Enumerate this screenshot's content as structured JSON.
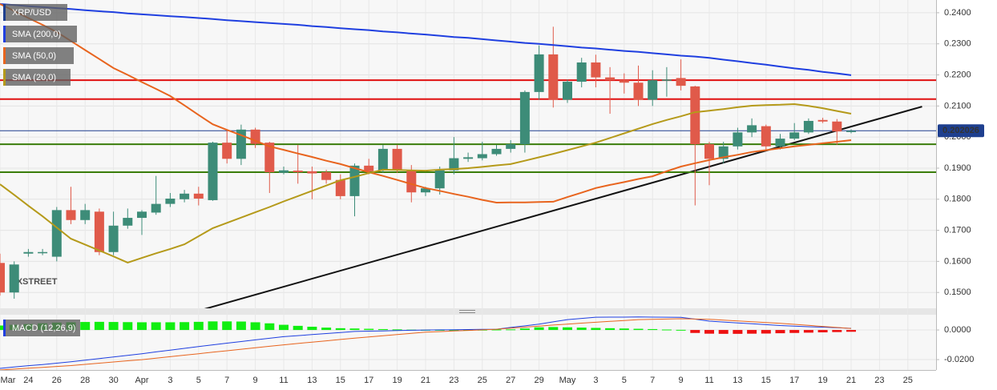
{
  "chart_data": [
    {
      "type": "candlestick",
      "title": "XRP/USD",
      "watermark": "FXSTREET",
      "categories": [
        "Mar",
        null,
        "24",
        null,
        "26",
        null,
        "28",
        null,
        "30",
        null,
        "Apr",
        null,
        "3",
        null,
        "5",
        null,
        "7",
        null,
        "9",
        null,
        "11",
        null,
        "13",
        null,
        "15",
        null,
        "17",
        null,
        "19",
        null,
        "21",
        null,
        "23",
        null,
        "25",
        null,
        "27",
        null,
        "29",
        null,
        "May",
        null,
        "3",
        null,
        "5",
        null,
        "7",
        null,
        "9",
        null,
        "11",
        null,
        "13",
        null,
        "15",
        null,
        "17",
        null,
        "19",
        null,
        "21",
        null,
        "23",
        null,
        "25",
        null
      ],
      "open": [
        0.1595,
        0.15,
        0.1625,
        0.163,
        0.1615,
        0.1765,
        0.1733,
        0.176,
        0.163,
        0.1715,
        0.174,
        0.1757,
        0.1785,
        0.18,
        0.1818,
        0.1797,
        0.1982,
        0.193,
        0.2024,
        0.1982,
        0.1885,
        0.1892,
        0.189,
        0.1887,
        0.1862,
        0.181,
        0.1908,
        0.1893,
        0.1962,
        0.1893,
        0.1822,
        0.1835,
        0.1893,
        0.193,
        0.1932,
        0.1945,
        0.1962,
        0.1977,
        0.2145,
        0.2266,
        0.212,
        0.2178,
        0.224,
        0.2192,
        0.2183,
        0.2175,
        0.212,
        0.2183,
        0.219,
        0.2163,
        0.1977,
        0.193,
        0.197,
        0.2015,
        0.2035,
        0.197,
        0.1995,
        0.2015,
        0.2055,
        0.205,
        0.2018,
        null,
        null,
        null,
        null,
        null
      ],
      "high": [
        0.1625,
        0.16,
        0.164,
        0.164,
        0.1775,
        0.184,
        0.1785,
        0.177,
        0.176,
        0.177,
        0.1765,
        0.1875,
        0.182,
        0.183,
        0.184,
        0.1985,
        0.202,
        0.204,
        0.203,
        0.1985,
        0.1905,
        0.1975,
        0.1905,
        0.1895,
        0.188,
        0.1915,
        0.193,
        0.1975,
        0.1975,
        0.191,
        0.184,
        0.1905,
        0.2,
        0.195,
        0.1985,
        0.1975,
        0.199,
        0.215,
        0.2295,
        0.2355,
        0.2185,
        0.2255,
        0.2265,
        0.2225,
        0.2205,
        0.223,
        0.2215,
        0.2225,
        0.225,
        0.2165,
        0.1985,
        0.1985,
        0.203,
        0.206,
        0.204,
        0.201,
        0.2045,
        0.206,
        0.2062,
        0.2058,
        0.2025,
        null,
        null,
        null,
        null,
        null
      ],
      "low": [
        0.149,
        0.148,
        0.1615,
        0.162,
        0.16,
        0.172,
        0.172,
        0.162,
        0.162,
        0.1705,
        0.1685,
        0.175,
        0.1775,
        0.179,
        0.178,
        0.1795,
        0.1915,
        0.191,
        0.1965,
        0.182,
        0.188,
        0.185,
        0.18,
        0.185,
        0.18,
        0.1745,
        0.188,
        0.1885,
        0.1885,
        0.179,
        0.181,
        0.1815,
        0.188,
        0.192,
        0.1925,
        0.194,
        0.195,
        0.195,
        0.212,
        0.2095,
        0.211,
        0.216,
        0.216,
        0.2075,
        0.214,
        0.21,
        0.21,
        0.213,
        0.215,
        0.178,
        0.1845,
        0.1915,
        0.196,
        0.2,
        0.1955,
        0.196,
        0.199,
        0.201,
        0.2045,
        0.1975,
        0.2012,
        null,
        null,
        null,
        null,
        null
      ],
      "close": [
        0.15,
        0.159,
        0.163,
        0.163,
        0.1765,
        0.1733,
        0.1765,
        0.163,
        0.1715,
        0.174,
        0.176,
        0.1785,
        0.1802,
        0.1818,
        0.1802,
        0.1982,
        0.193,
        0.2024,
        0.1978,
        0.1887,
        0.1893,
        0.1887,
        0.1883,
        0.1862,
        0.181,
        0.1908,
        0.189,
        0.1962,
        0.1893,
        0.1822,
        0.1835,
        0.1893,
        0.1932,
        0.1935,
        0.1945,
        0.1962,
        0.1977,
        0.2145,
        0.2266,
        0.212,
        0.2178,
        0.224,
        0.2192,
        0.2183,
        0.2175,
        0.212,
        0.2183,
        0.2185,
        0.2165,
        0.1977,
        0.193,
        0.197,
        0.2015,
        0.2038,
        0.197,
        0.1995,
        0.2015,
        0.2052,
        0.205,
        0.2018,
        0.202,
        null,
        null,
        null,
        null,
        null
      ],
      "up_color": "#3d8c78",
      "down_color": "#e05a4a",
      "series": [
        {
          "name": "SMA (200,0)",
          "color": "#1f3fe0",
          "values": [
            0.2428,
            0.2425,
            0.2421,
            0.2418,
            0.2415,
            0.2412,
            0.2408,
            0.2405,
            0.2402,
            0.2398,
            0.2395,
            0.2392,
            0.2389,
            0.2386,
            0.2383,
            0.238,
            0.2376,
            0.2373,
            0.237,
            0.2367,
            0.2364,
            0.2361,
            0.2357,
            0.2354,
            0.235,
            0.2347,
            0.2344,
            0.234,
            0.2337,
            0.2333,
            0.233,
            0.2326,
            0.2322,
            0.2319,
            0.2315,
            0.2311,
            0.2307,
            0.2303,
            0.23,
            0.2296,
            0.2292,
            0.2288,
            0.2285,
            0.2281,
            0.2277,
            0.2274,
            0.227,
            0.2266,
            0.2262,
            0.2259,
            0.2255,
            0.2249,
            0.2244,
            0.2238,
            0.2233,
            0.2227,
            0.2221,
            0.2216,
            0.221,
            0.2205,
            0.2199,
            null,
            null,
            null,
            null,
            null
          ]
        },
        {
          "name": "SMA (50,0)",
          "color": "#e8641e",
          "values": [
            0.2428,
            0.2406,
            0.2383,
            0.2361,
            0.2338,
            0.2309,
            0.228,
            0.2251,
            0.2222,
            0.22,
            0.2177,
            0.2155,
            0.2132,
            0.2102,
            0.2071,
            0.2041,
            0.2023,
            0.2006,
            0.1988,
            0.197,
            0.1959,
            0.1947,
            0.1936,
            0.1924,
            0.1913,
            0.19,
            0.1887,
            0.1875,
            0.1862,
            0.1849,
            0.1836,
            0.1827,
            0.1817,
            0.1808,
            0.1798,
            0.1789,
            0.179,
            0.179,
            0.1791,
            0.1792,
            0.1807,
            0.1821,
            0.1836,
            0.1846,
            0.1855,
            0.1865,
            0.1874,
            0.189,
            0.1905,
            0.1916,
            0.1926,
            0.1935,
            0.1943,
            0.1952,
            0.1958,
            0.1964,
            0.197,
            0.1975,
            0.198,
            0.1985,
            0.199,
            null,
            null,
            null,
            null,
            null
          ]
        },
        {
          "name": "SMA (20,0)",
          "color": "#b59a1a",
          "values": [
            0.1848,
            0.1814,
            0.1779,
            0.1745,
            0.1709,
            0.1673,
            0.1654,
            0.1635,
            0.1616,
            0.1596,
            0.1611,
            0.1626,
            0.164,
            0.1655,
            0.1681,
            0.1707,
            0.1724,
            0.1741,
            0.1758,
            0.1775,
            0.1793,
            0.181,
            0.1827,
            0.1844,
            0.1861,
            0.1872,
            0.1884,
            0.1895,
            0.1894,
            0.1893,
            0.1892,
            0.1895,
            0.1897,
            0.19,
            0.1904,
            0.1909,
            0.1913,
            0.1924,
            0.1935,
            0.1946,
            0.1958,
            0.197,
            0.1982,
            0.1997,
            0.2012,
            0.2027,
            0.2042,
            0.2055,
            0.2067,
            0.208,
            0.2085,
            0.209,
            0.2096,
            0.2101,
            0.2103,
            0.2104,
            0.2106,
            0.21,
            0.2093,
            0.2084,
            0.2075,
            null,
            null,
            null,
            null,
            null
          ]
        }
      ],
      "levels": [
        {
          "value": 0.2183,
          "color": "#e01010"
        },
        {
          "value": 0.2122,
          "color": "#e01010"
        },
        {
          "value": 0.1977,
          "color": "#3a7d0a"
        },
        {
          "value": 0.1887,
          "color": "#3a7d0a"
        }
      ],
      "trend_line": {
        "color": "#111111",
        "values": [
          0.1261,
          0.2098
        ]
      },
      "last_price": 0.202026,
      "last_price_color": "#1e3f8f",
      "ylim": [
        0.1449,
        0.2441
      ],
      "yticks": [
        {
          "value": 0.15,
          "label": "0.1500"
        },
        {
          "value": 0.16,
          "label": "0.1600"
        },
        {
          "value": 0.17,
          "label": "0.1700"
        },
        {
          "value": 0.18,
          "label": "0.1800"
        },
        {
          "value": 0.19,
          "label": "0.1900"
        },
        {
          "value": 0.2,
          "label": "0.2000"
        },
        {
          "value": 0.21,
          "label": "0.2100"
        },
        {
          "value": 0.22,
          "label": "0.2200"
        },
        {
          "value": 0.23,
          "label": "0.2300"
        },
        {
          "value": 0.24,
          "label": "0.2400"
        }
      ],
      "grid": true
    },
    {
      "type": "macd",
      "title": "MACD (12,26,9)",
      "title_color": "#1f3fe0",
      "histogram": [
        0.003,
        0.0035,
        0.004,
        0.0045,
        0.005,
        0.0052,
        0.0054,
        0.0055,
        0.0054,
        0.0053,
        0.0052,
        0.0052,
        0.0052,
        0.0053,
        0.0055,
        0.0058,
        0.0058,
        0.0057,
        0.0052,
        0.0045,
        0.0035,
        0.0028,
        0.0022,
        0.0016,
        0.0012,
        0.001,
        0.0008,
        0.0006,
        0.0004,
        0.0002,
        0.0001,
        0.0001,
        0.0001,
        0.0002,
        0.0002,
        0.0003,
        0.0004,
        0.001,
        0.0018,
        0.002,
        0.0018,
        0.0016,
        0.0014,
        0.0012,
        0.001,
        0.0008,
        0.0006,
        0.0003,
        0.0001,
        -0.002,
        -0.0025,
        -0.0026,
        -0.0026,
        -0.0025,
        -0.0024,
        -0.0022,
        -0.002,
        -0.0018,
        -0.0016,
        -0.0014,
        -0.0012,
        null,
        null,
        null,
        null,
        null
      ],
      "positive_color": "#11ee11",
      "negative_color": "#ee1111",
      "series": [
        {
          "color": "#1f3fe0",
          "values": [
            -0.0259,
            -0.025,
            -0.0241,
            -0.0233,
            -0.0224,
            -0.0215,
            -0.0204,
            -0.0193,
            -0.0182,
            -0.0171,
            -0.016,
            -0.0148,
            -0.0136,
            -0.0124,
            -0.0112,
            -0.01,
            -0.0089,
            -0.0078,
            -0.0067,
            -0.0056,
            -0.0045,
            -0.0038,
            -0.0031,
            -0.0024,
            -0.0017,
            -0.001,
            -0.0008,
            -0.0006,
            -0.0004,
            -0.0002,
            0.0,
            0.0001,
            0.0002,
            0.0003,
            0.0004,
            0.0005,
            0.0017,
            0.0028,
            0.004,
            0.0055,
            0.007,
            0.0078,
            0.0086,
            0.0087,
            0.0087,
            0.0088,
            0.0087,
            0.0086,
            0.0085,
            0.0073,
            0.006,
            0.0054,
            0.0048,
            0.0042,
            0.0036,
            0.003,
            0.0026,
            0.0022,
            0.0019,
            0.0015,
            0.0011,
            null,
            null,
            null,
            null,
            null
          ]
        },
        {
          "color": "#e8641e",
          "values": [
            -0.027,
            -0.0264,
            -0.0258,
            -0.0252,
            -0.0246,
            -0.024,
            -0.0232,
            -0.0224,
            -0.0216,
            -0.0208,
            -0.02,
            -0.019,
            -0.018,
            -0.017,
            -0.016,
            -0.015,
            -0.014,
            -0.013,
            -0.012,
            -0.011,
            -0.01,
            -0.0091,
            -0.0082,
            -0.0073,
            -0.0064,
            -0.0055,
            -0.0047,
            -0.0039,
            -0.0031,
            -0.0023,
            -0.0015,
            -0.0011,
            -0.0007,
            -0.0003,
            0.0001,
            0.0005,
            0.0012,
            0.0019,
            0.0026,
            0.0033,
            0.004,
            0.0046,
            0.0052,
            0.0058,
            0.0064,
            0.007,
            0.0072,
            0.0074,
            0.0076,
            0.0074,
            0.0072,
            0.0067,
            0.0061,
            0.0056,
            0.005,
            0.0045,
            0.0038,
            0.0031,
            0.0024,
            0.0017,
            0.001,
            null,
            null,
            null,
            null,
            null
          ]
        }
      ],
      "ylim": [
        -0.027,
        0.0103
      ],
      "yticks": [
        {
          "value": 0,
          "label": "0.0000"
        },
        {
          "value": -0.02,
          "label": "-0.0200"
        }
      ]
    }
  ]
}
